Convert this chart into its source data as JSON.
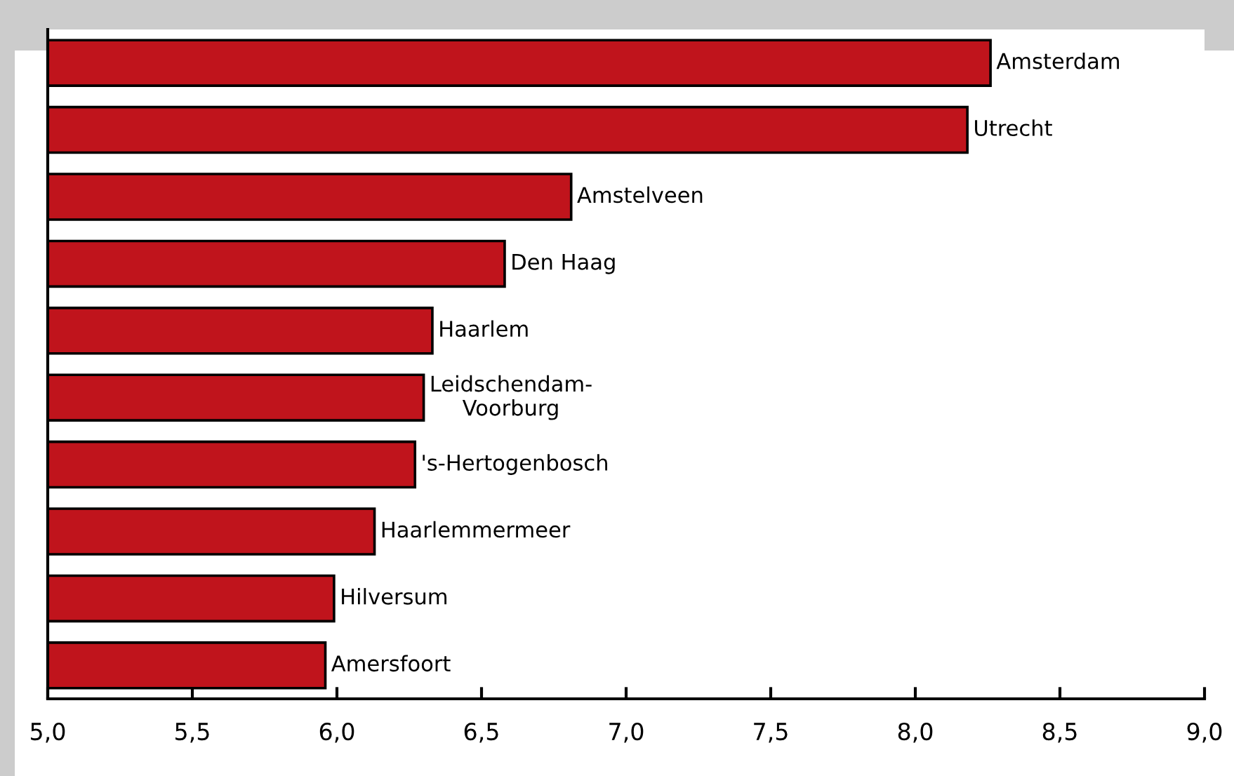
{
  "chart_data": {
    "type": "bar",
    "orientation": "horizontal",
    "categories": [
      "Amsterdam",
      "Utrecht",
      "Amstelveen",
      "Den Haag",
      "Haarlem",
      "Leidschendam-\nVoorburg",
      "'s-Hertogenbosch",
      "Haarlemmermeer",
      "Hilversum",
      "Amersfoort"
    ],
    "values": [
      8.26,
      8.18,
      6.81,
      6.58,
      6.33,
      6.3,
      6.27,
      6.13,
      5.99,
      5.96
    ],
    "color": "#c0141c",
    "xlim": [
      5.0,
      9.0
    ],
    "xticks": [
      {
        "value": 5.0,
        "label": "5,0"
      },
      {
        "value": 5.5,
        "label": "5,5"
      },
      {
        "value": 6.0,
        "label": "6,0"
      },
      {
        "value": 6.5,
        "label": "6,5"
      },
      {
        "value": 7.0,
        "label": "7,0"
      },
      {
        "value": 7.5,
        "label": "7,5"
      },
      {
        "value": 8.0,
        "label": "8,0"
      },
      {
        "value": 8.5,
        "label": "8,5"
      },
      {
        "value": 9.0,
        "label": "9,0"
      }
    ],
    "tick_labels": "x",
    "grid": false,
    "legend": false
  }
}
